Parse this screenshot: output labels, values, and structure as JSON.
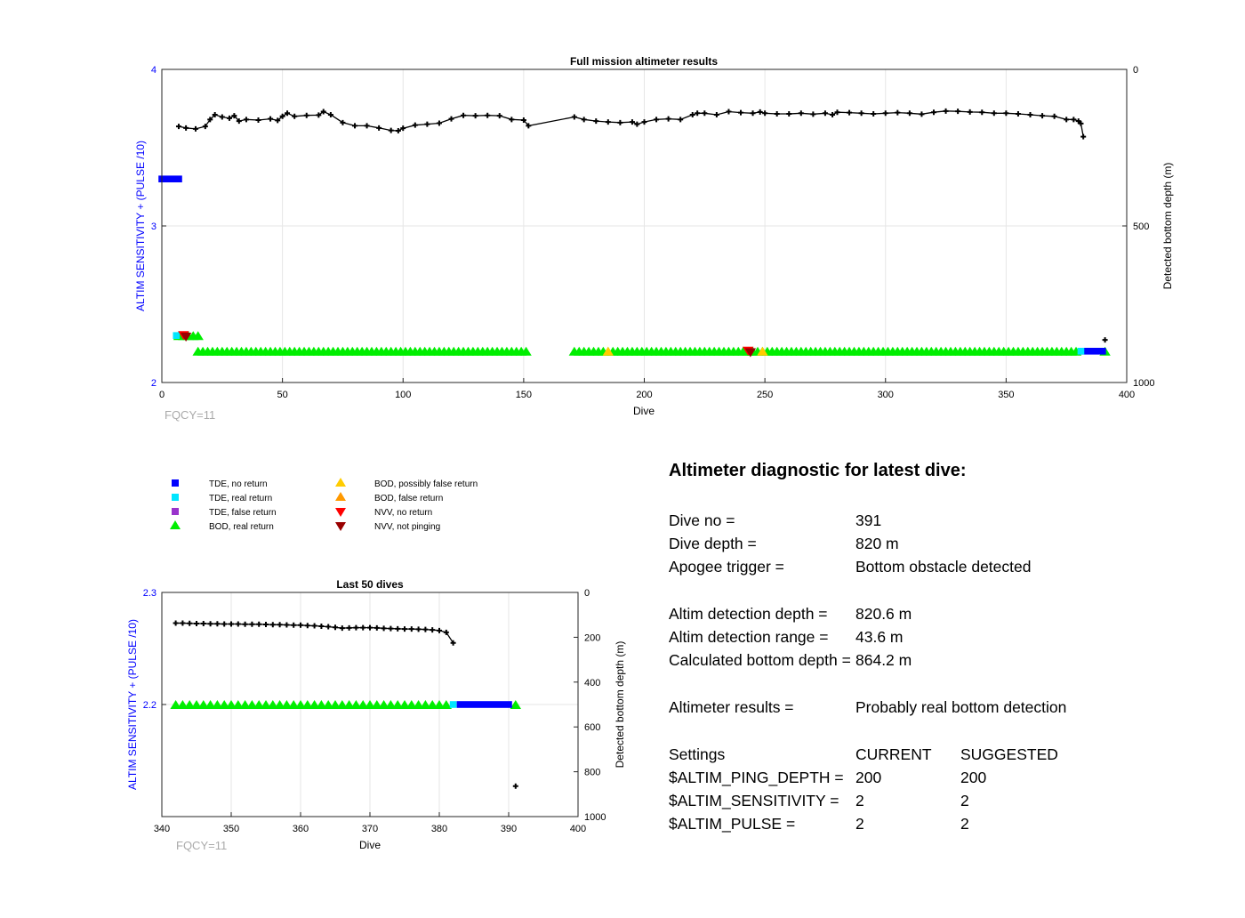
{
  "charts": {
    "main": {
      "title": "Full mission altimeter results",
      "xlabel": "Dive",
      "ylabel_left": "ALTIM SENSITIVITY + (PULSE /10)",
      "ylabel_right": "Detected bottom depth (m)",
      "note": "FQCY=11",
      "x_ticks": [
        "0",
        "50",
        "100",
        "150",
        "200",
        "250",
        "300",
        "350",
        "400"
      ],
      "y_left_ticks": [
        "2",
        "3",
        "4"
      ],
      "y_right_ticks": [
        "0",
        "500",
        "1000"
      ]
    },
    "last50": {
      "title": "Last 50 dives",
      "xlabel": "Dive",
      "ylabel_left": "ALTIM SENSITIVITY + (PULSE /10)",
      "ylabel_right": "Detected bottom depth (m)",
      "note": "FQCY=11",
      "x_ticks": [
        "340",
        "350",
        "360",
        "370",
        "380",
        "390",
        "400"
      ],
      "y_left_ticks": [
        "2.2",
        "2.3"
      ],
      "y_right_ticks": [
        "0",
        "200",
        "400",
        "600",
        "800",
        "1000"
      ]
    }
  },
  "legend": {
    "tde_no_return": "TDE, no return",
    "tde_real_return": "TDE, real return",
    "tde_false_return": "TDE, false return",
    "bod_real_return": "BOD, real return",
    "bod_possibly_false": "BOD, possibly false return",
    "bod_false_return": "BOD, false return",
    "nvv_no_return": "NVV, no return",
    "nvv_not_pinging": "NVV, not pinging"
  },
  "diagnostic": {
    "title": "Altimeter diagnostic for latest dive:",
    "dive_no_label": "Dive no =",
    "dive_no": "391",
    "dive_depth_label": "Dive depth =",
    "dive_depth": "820 m",
    "apogee_label": "Apogee trigger =",
    "apogee": "Bottom obstacle detected",
    "altim_det_depth_label": "Altim detection depth =",
    "altim_det_depth": "820.6 m",
    "altim_det_range_label": "Altim detection range =",
    "altim_det_range": "43.6 m",
    "calc_bottom_label": "Calculated bottom depth =",
    "calc_bottom": "864.2 m",
    "results_label": "Altimeter results =",
    "results": "Probably real bottom detection",
    "settings_label": "Settings",
    "current_label": "CURRENT",
    "suggested_label": "SUGGESTED",
    "ping_depth_label": "$ALTIM_PING_DEPTH =",
    "ping_depth_current": "200",
    "ping_depth_suggested": "200",
    "sensitivity_label": "$ALTIM_SENSITIVITY =",
    "sensitivity_current": "2",
    "sensitivity_suggested": "2",
    "pulse_label": "$ALTIM_PULSE =",
    "pulse_current": "2",
    "pulse_suggested": "2"
  },
  "colors": {
    "tde_no_return": "#0000ff",
    "tde_real_return": "#00e5ff",
    "tde_false_return": "#9933cc",
    "bod_real_return": "#00ee00",
    "bod_possibly_false": "#ffcc00",
    "bod_false_return": "#ff9900",
    "nvv_no_return": "#ff0000",
    "nvv_not_pinging": "#990000",
    "left_axis": "#0000ff"
  },
  "chart_data": [
    {
      "type": "scatter",
      "title": "Full mission altimeter results",
      "xlabel": "Dive",
      "ylabel": "ALTIM SENSITIVITY + (PULSE /10)",
      "ylabel_right": "Detected bottom depth (m)",
      "xlim": [
        0,
        400
      ],
      "ylim": [
        2,
        4
      ],
      "ylim_right": [
        1000,
        0
      ],
      "grid": true,
      "series": [
        {
          "name": "Detected bottom depth (m)",
          "axis": "right",
          "points": [
            [
              7,
              182
            ],
            [
              10,
              187
            ],
            [
              14,
              190
            ],
            [
              18,
              182
            ],
            [
              20,
              160
            ],
            [
              22,
              145
            ],
            [
              25,
              152
            ],
            [
              28,
              156
            ],
            [
              30,
              148
            ],
            [
              32,
              165
            ],
            [
              35,
              160
            ],
            [
              40,
              162
            ],
            [
              45,
              158
            ],
            [
              48,
              163
            ],
            [
              50,
              150
            ],
            [
              52,
              140
            ],
            [
              55,
              150
            ],
            [
              60,
              147
            ],
            [
              65,
              146
            ],
            [
              67,
              135
            ],
            [
              70,
              145
            ],
            [
              75,
              170
            ],
            [
              80,
              180
            ],
            [
              85,
              180
            ],
            [
              90,
              187
            ],
            [
              95,
              195
            ],
            [
              98,
              196
            ],
            [
              100,
              188
            ],
            [
              105,
              178
            ],
            [
              110,
              175
            ],
            [
              115,
              172
            ],
            [
              120,
              158
            ],
            [
              125,
              147
            ],
            [
              130,
              148
            ],
            [
              135,
              147
            ],
            [
              140,
              148
            ],
            [
              145,
              160
            ],
            [
              150,
              162
            ],
            [
              152,
              180
            ],
            [
              171,
              152
            ],
            [
              175,
              160
            ],
            [
              180,
              165
            ],
            [
              185,
              168
            ],
            [
              190,
              170
            ],
            [
              195,
              168
            ],
            [
              197,
              175
            ],
            [
              200,
              168
            ],
            [
              205,
              160
            ],
            [
              210,
              158
            ],
            [
              215,
              160
            ],
            [
              220,
              145
            ],
            [
              222,
              140
            ],
            [
              225,
              140
            ],
            [
              230,
              145
            ],
            [
              235,
              135
            ],
            [
              240,
              138
            ],
            [
              245,
              140
            ],
            [
              248,
              136
            ],
            [
              250,
              140
            ],
            [
              255,
              142
            ],
            [
              260,
              142
            ],
            [
              265,
              140
            ],
            [
              270,
              143
            ],
            [
              275,
              140
            ],
            [
              278,
              145
            ],
            [
              280,
              137
            ],
            [
              285,
              138
            ],
            [
              290,
              140
            ],
            [
              295,
              142
            ],
            [
              300,
              140
            ],
            [
              305,
              138
            ],
            [
              310,
              140
            ],
            [
              315,
              143
            ],
            [
              320,
              137
            ],
            [
              325,
              133
            ],
            [
              330,
              134
            ],
            [
              335,
              136
            ],
            [
              340,
              137
            ],
            [
              345,
              140
            ],
            [
              350,
              140
            ],
            [
              355,
              142
            ],
            [
              360,
              145
            ],
            [
              365,
              148
            ],
            [
              370,
              150
            ],
            [
              375,
              160
            ],
            [
              378,
              160
            ],
            [
              380,
              165
            ],
            [
              381,
              173
            ],
            [
              382,
              215
            ],
            [
              391,
              864
            ]
          ]
        },
        {
          "name": "BOD, real return",
          "axis": "left",
          "ranges": [
            [
              7,
              16,
              2.3
            ],
            [
              15,
              151,
              2.2
            ],
            [
              171,
              380,
              2.2
            ],
            [
              391,
              391,
              2.2
            ]
          ]
        },
        {
          "name": "TDE, no return",
          "axis": "left",
          "ranges": [
            [
              0,
              7,
              3.3
            ],
            [
              382,
              390,
              2.2
            ]
          ]
        },
        {
          "name": "TDE, real return",
          "axis": "left",
          "points": [
            [
              6,
              2.3
            ],
            [
              381,
              2.2
            ]
          ]
        },
        {
          "name": "BOD, possibly false return",
          "axis": "left",
          "points": [
            [
              185,
              2.2
            ],
            [
              249,
              2.2
            ]
          ]
        },
        {
          "name": "NVV, no return",
          "axis": "left",
          "points": [
            [
              9,
              2.3
            ],
            [
              243,
              2.2
            ]
          ]
        },
        {
          "name": "NVV, not pinging",
          "axis": "left",
          "points": [
            [
              10,
              2.29
            ],
            [
              244,
              2.19
            ]
          ]
        }
      ]
    },
    {
      "type": "scatter",
      "title": "Last 50 dives",
      "xlabel": "Dive",
      "ylabel": "ALTIM SENSITIVITY + (PULSE /10)",
      "ylabel_right": "Detected bottom depth (m)",
      "xlim": [
        340,
        400
      ],
      "ylim": [
        2.1,
        2.3
      ],
      "ylim_right": [
        1000,
        0
      ],
      "grid": true,
      "series": [
        {
          "name": "Detected bottom depth (m)",
          "axis": "right",
          "points": [
            [
              342,
              137
            ],
            [
              343,
              137
            ],
            [
              344,
              138
            ],
            [
              345,
              139
            ],
            [
              346,
              139
            ],
            [
              347,
              140
            ],
            [
              348,
              140
            ],
            [
              349,
              141
            ],
            [
              350,
              141
            ],
            [
              351,
              141
            ],
            [
              352,
              142
            ],
            [
              353,
              142
            ],
            [
              354,
              142
            ],
            [
              355,
              143
            ],
            [
              356,
              144
            ],
            [
              357,
              144
            ],
            [
              358,
              145
            ],
            [
              359,
              146
            ],
            [
              360,
              146
            ],
            [
              361,
              148
            ],
            [
              362,
              149
            ],
            [
              363,
              151
            ],
            [
              364,
              153
            ],
            [
              365,
              156
            ],
            [
              366,
              159
            ],
            [
              367,
              158
            ],
            [
              368,
              157
            ],
            [
              369,
              157
            ],
            [
              370,
              157
            ],
            [
              371,
              158
            ],
            [
              372,
              160
            ],
            [
              373,
              161
            ],
            [
              374,
              162
            ],
            [
              375,
              163
            ],
            [
              376,
              163
            ],
            [
              377,
              164
            ],
            [
              378,
              165
            ],
            [
              379,
              167
            ],
            [
              380,
              170
            ],
            [
              381,
              178
            ],
            [
              382,
              225
            ],
            [
              391,
              864
            ]
          ]
        },
        {
          "name": "BOD, real return",
          "axis": "left",
          "points": [
            [
              342,
              2.2
            ],
            [
              343,
              2.2
            ],
            [
              344,
              2.2
            ],
            [
              345,
              2.2
            ],
            [
              346,
              2.2
            ],
            [
              347,
              2.2
            ],
            [
              348,
              2.2
            ],
            [
              349,
              2.2
            ],
            [
              350,
              2.2
            ],
            [
              351,
              2.2
            ],
            [
              352,
              2.2
            ],
            [
              353,
              2.2
            ],
            [
              354,
              2.2
            ],
            [
              355,
              2.2
            ],
            [
              356,
              2.2
            ],
            [
              357,
              2.2
            ],
            [
              358,
              2.2
            ],
            [
              359,
              2.2
            ],
            [
              360,
              2.2
            ],
            [
              361,
              2.2
            ],
            [
              362,
              2.2
            ],
            [
              363,
              2.2
            ],
            [
              364,
              2.2
            ],
            [
              365,
              2.2
            ],
            [
              366,
              2.2
            ],
            [
              367,
              2.2
            ],
            [
              368,
              2.2
            ],
            [
              369,
              2.2
            ],
            [
              370,
              2.2
            ],
            [
              371,
              2.2
            ],
            [
              372,
              2.2
            ],
            [
              373,
              2.2
            ],
            [
              374,
              2.2
            ],
            [
              375,
              2.2
            ],
            [
              376,
              2.2
            ],
            [
              377,
              2.2
            ],
            [
              378,
              2.2
            ],
            [
              379,
              2.2
            ],
            [
              380,
              2.2
            ],
            [
              381,
              2.2
            ],
            [
              391,
              2.2
            ]
          ]
        },
        {
          "name": "TDE, real return",
          "axis": "left",
          "points": [
            [
              382,
              2.2
            ]
          ]
        },
        {
          "name": "TDE, no return",
          "axis": "left",
          "ranges": [
            [
              383,
              390,
              2.2
            ]
          ]
        }
      ]
    }
  ]
}
